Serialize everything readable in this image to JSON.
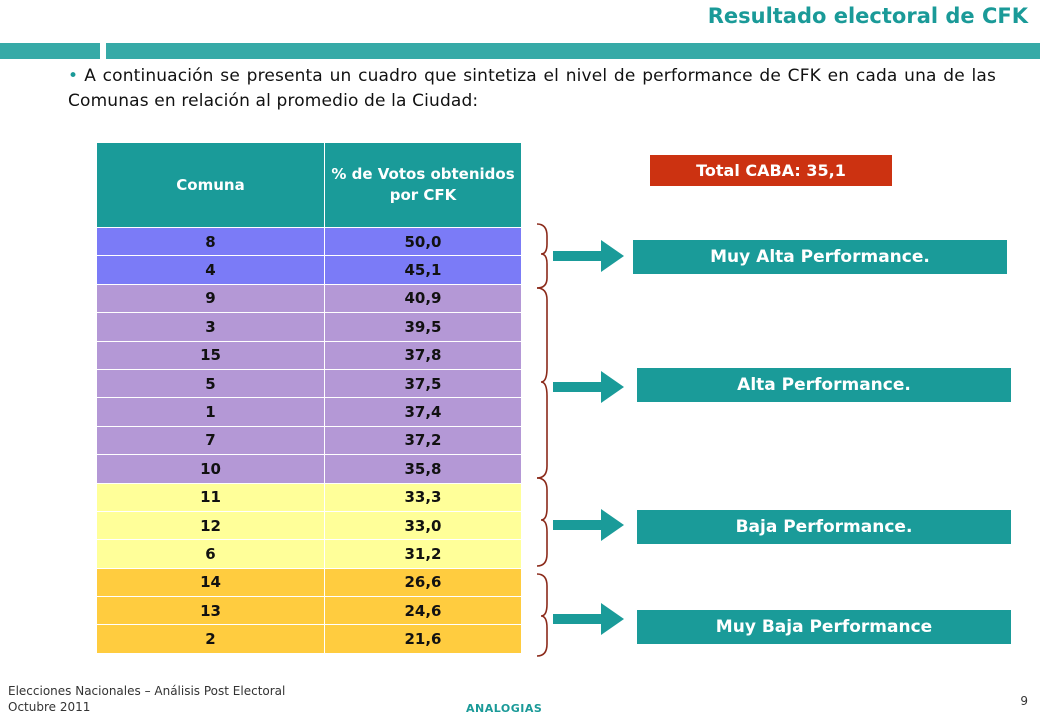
{
  "slide": {
    "title": "Resultado electoral de CFK",
    "intro": "A continuación se presenta un cuadro que sintetiza el nivel de performance de CFK en cada una de las Comunas en relación al promedio de la Ciudad:"
  },
  "table": {
    "headers": [
      "Comuna",
      "% de Votos obtenidos por CFK"
    ],
    "rows": [
      {
        "comuna": "8",
        "votos": "50,0"
      },
      {
        "comuna": "4",
        "votos": "45,1"
      },
      {
        "comuna": "9",
        "votos": "40,9"
      },
      {
        "comuna": "3",
        "votos": "39,5"
      },
      {
        "comuna": "15",
        "votos": "37,8"
      },
      {
        "comuna": "5",
        "votos": "37,5"
      },
      {
        "comuna": "1",
        "votos": "37,4"
      },
      {
        "comuna": "7",
        "votos": "37,2"
      },
      {
        "comuna": "10",
        "votos": "35,8"
      },
      {
        "comuna": "11",
        "votos": "33,3"
      },
      {
        "comuna": "12",
        "votos": "33,0"
      },
      {
        "comuna": "6",
        "votos": "31,2"
      },
      {
        "comuna": "14",
        "votos": "26,6"
      },
      {
        "comuna": "13",
        "votos": "24,6"
      },
      {
        "comuna": "2",
        "votos": "21,6"
      }
    ]
  },
  "total": "Total CABA: 35,1",
  "categories": {
    "muy_alta": "Muy Alta Performance.",
    "alta": "Alta Performance.",
    "baja": "Baja Performance.",
    "muy_baja": "Muy Baja Performance"
  },
  "colors": {
    "accent": "#1a9b99",
    "total": "#cc3211",
    "muy_alta": "#7b7bf7",
    "alta": "#b498d6",
    "baja": "#ffff99",
    "muy_baja": "#ffcc3f",
    "brace": "#8b2a1a"
  },
  "footer": {
    "line1": "Elecciones Nacionales – Análisis Post Electoral",
    "line2": "Octubre 2011",
    "brand": "ANALOGIAS",
    "page": "9"
  }
}
